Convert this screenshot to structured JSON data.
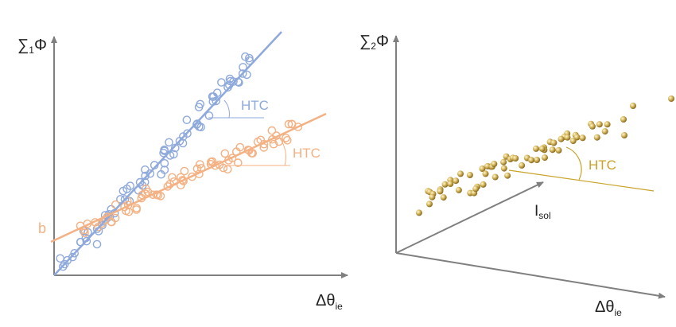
{
  "left_panel": {
    "y_axis_label_main": "∑",
    "y_axis_label_sub": "1",
    "y_axis_label_end": "Φ",
    "x_axis_label_main": "Δθ",
    "x_axis_label_sub": "ie",
    "intercept_label": "b",
    "blue_angle_label": "HTC",
    "orange_angle_label": "HTC"
  },
  "right_panel": {
    "z_axis_label_main": "∑",
    "z_axis_label_sub": "2",
    "z_axis_label_end": "Φ",
    "depth_axis_label_main": "I",
    "depth_axis_label_sub": "sol",
    "x_axis_label_main": "Δθ",
    "x_axis_label_sub": "ie",
    "angle_label": "HTC"
  },
  "colors": {
    "axis": "#7f7f7f",
    "blue": "#8ea9db",
    "orange": "#f4b183",
    "gold": "#c9a227",
    "ball": "#d9b95a"
  }
}
